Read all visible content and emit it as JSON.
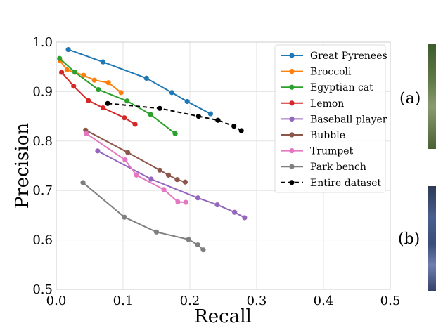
{
  "chart_data": {
    "type": "line",
    "title": "",
    "xlabel": "Recall",
    "ylabel": "Precision",
    "xlim": [
      0.0,
      0.5
    ],
    "ylim": [
      0.5,
      1.0
    ],
    "xticks": [
      "0.0",
      "0.1",
      "0.2",
      "0.3",
      "0.4",
      "0.5"
    ],
    "yticks": [
      "0.5",
      "0.6",
      "0.7",
      "0.8",
      "0.9",
      "1.0"
    ],
    "grid": true,
    "legend_position": "top-right",
    "series": [
      {
        "name": "Great Pyrenees",
        "color": "#1f77b4",
        "dashed": false,
        "x": [
          0.018,
          0.07,
          0.135,
          0.173,
          0.196,
          0.231
        ],
        "y": [
          0.985,
          0.96,
          0.927,
          0.898,
          0.88,
          0.855
        ]
      },
      {
        "name": "Broccoli",
        "color": "#ff7f0e",
        "dashed": false,
        "x": [
          0.006,
          0.016,
          0.041,
          0.057,
          0.078,
          0.097
        ],
        "y": [
          0.962,
          0.944,
          0.933,
          0.923,
          0.918,
          0.898
        ]
      },
      {
        "name": "Egyptian cat",
        "color": "#2ca02c",
        "dashed": false,
        "x": [
          0.005,
          0.028,
          0.063,
          0.106,
          0.141,
          0.178
        ],
        "y": [
          0.967,
          0.939,
          0.904,
          0.881,
          0.854,
          0.815
        ]
      },
      {
        "name": "Lemon",
        "color": "#d62728",
        "dashed": false,
        "x": [
          0.008,
          0.026,
          0.048,
          0.07,
          0.102,
          0.118
        ],
        "y": [
          0.939,
          0.911,
          0.882,
          0.867,
          0.847,
          0.834
        ]
      },
      {
        "name": "Baseball player",
        "color": "#9467bd",
        "dashed": false,
        "x": [
          0.062,
          0.142,
          0.212,
          0.241,
          0.267,
          0.282
        ],
        "y": [
          0.78,
          0.723,
          0.685,
          0.671,
          0.656,
          0.645
        ]
      },
      {
        "name": "Bubble",
        "color": "#8c564b",
        "dashed": false,
        "x": [
          0.044,
          0.107,
          0.155,
          0.168,
          0.181,
          0.193
        ],
        "y": [
          0.822,
          0.777,
          0.741,
          0.731,
          0.722,
          0.717
        ]
      },
      {
        "name": "Trumpet",
        "color": "#e377c2",
        "dashed": false,
        "x": [
          0.045,
          0.103,
          0.12,
          0.161,
          0.182,
          0.194
        ],
        "y": [
          0.815,
          0.762,
          0.731,
          0.702,
          0.677,
          0.676
        ]
      },
      {
        "name": "Park bench",
        "color": "#7f7f7f",
        "dashed": false,
        "x": [
          0.04,
          0.102,
          0.15,
          0.198,
          0.212,
          0.22
        ],
        "y": [
          0.716,
          0.646,
          0.616,
          0.601,
          0.59,
          0.58
        ]
      },
      {
        "name": "Entire dataset",
        "color": "#000000",
        "dashed": true,
        "x": [
          0.077,
          0.155,
          0.213,
          0.242,
          0.266,
          0.277
        ],
        "y": [
          0.876,
          0.866,
          0.85,
          0.842,
          0.83,
          0.821
        ]
      }
    ]
  },
  "panel_labels": {
    "a": "(a)",
    "b": "(b)"
  }
}
